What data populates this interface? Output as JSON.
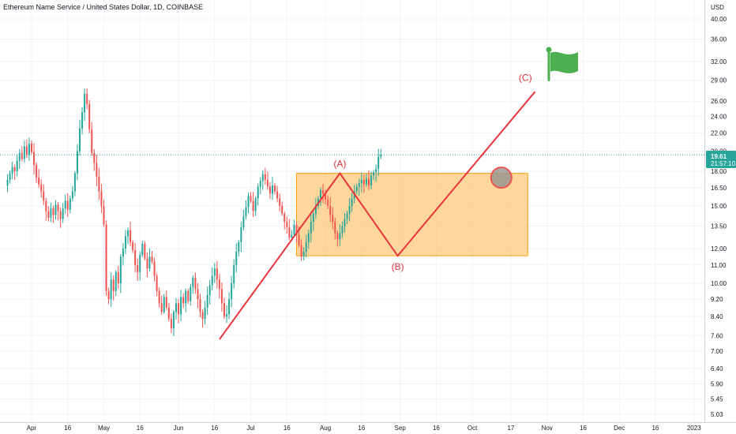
{
  "header": {
    "title": "Ethereum Name Service / United States Dollar, 1D, COINBASE"
  },
  "price_axis": {
    "currency": "USD",
    "last_price": "19.61",
    "countdown": "21:57:10",
    "badge_color": "#26a69a"
  },
  "colors": {
    "up": "#26a69a",
    "down": "#ef5350",
    "wave_line": "#e8343a",
    "zone_fill": "#ffb74d",
    "flag": "#4caf50",
    "grid": "#f0f3fa"
  },
  "annotations": {
    "wave_a": "(A)",
    "wave_b": "(B)",
    "wave_c": "(C)",
    "flag_icon": "flag-icon",
    "circle_icon": "circle-marker-icon"
  },
  "chart_data": {
    "type": "candlestick",
    "title": "Ethereum Name Service / United States Dollar, 1D, COINBASE",
    "scale": "log",
    "ylim": [
      5.03,
      44.0
    ],
    "y_ticks": [
      5.03,
      5.45,
      5.9,
      6.4,
      7.0,
      7.6,
      8.4,
      9.2,
      10.0,
      11.0,
      12.0,
      13.5,
      15.0,
      16.5,
      18.0,
      20.0,
      22.0,
      24.0,
      26.0,
      29.0,
      32.0,
      36.0,
      40.0
    ],
    "y_tick_labels": [
      "5.03",
      "5.45",
      "5.90",
      "6.40",
      "7.00",
      "7.60",
      "8.40",
      "9.20",
      "10.00",
      "11.00",
      "12.00",
      "13.50",
      "15.00",
      "16.50",
      "18.00",
      "20.00",
      "22.00",
      "24.00",
      "26.00",
      "29.00",
      "32.00",
      "36.00",
      "40.00"
    ],
    "x_ticks": [
      "Apr",
      "16",
      "May",
      "16",
      "Jun",
      "16",
      "Jul",
      "16",
      "Aug",
      "16",
      "Sep",
      "16",
      "Oct",
      "17",
      "Nov",
      "16",
      "Dec",
      "16",
      "2023"
    ],
    "x_tick_days": [
      0,
      15,
      30,
      45,
      61,
      76,
      91,
      106,
      122,
      137,
      153,
      168,
      183,
      199,
      214,
      229,
      244,
      259,
      275
    ],
    "candle_start_day": -10,
    "closes": [
      17.2,
      17.8,
      18.4,
      18.0,
      19.0,
      19.8,
      19.2,
      20.5,
      19.6,
      20.8,
      19.9,
      18.6,
      17.4,
      16.8,
      16.2,
      15.4,
      14.6,
      14.1,
      14.8,
      14.3,
      15.1,
      14.6,
      14.0,
      14.8,
      15.4,
      14.7,
      15.6,
      16.2,
      17.8,
      20.0,
      22.5,
      24.5,
      27.0,
      25.6,
      22.4,
      19.8,
      18.8,
      17.5,
      16.2,
      15.0,
      13.6,
      9.6,
      9.2,
      10.2,
      9.6,
      10.6,
      10.0,
      11.5,
      12.0,
      12.8,
      13.2,
      12.4,
      11.9,
      11.0,
      10.6,
      11.6,
      12.3,
      11.4,
      10.8,
      11.5,
      11.2,
      10.4,
      9.6,
      9.0,
      8.6,
      9.3,
      8.8,
      8.3,
      7.9,
      8.6,
      9.0,
      8.5,
      9.3,
      9.0,
      9.6,
      9.1,
      9.8,
      10.3,
      9.7,
      9.2,
      8.6,
      8.3,
      8.8,
      9.4,
      9.9,
      10.4,
      10.8,
      10.2,
      9.7,
      9.0,
      8.4,
      8.5,
      9.2,
      10.0,
      11.0,
      11.8,
      12.4,
      13.4,
      14.2,
      14.9,
      15.8,
      15.4,
      14.6,
      15.6,
      16.6,
      17.1,
      17.7,
      17.2,
      16.6,
      16.0,
      16.7,
      16.2,
      15.6,
      15.0,
      14.4,
      13.8,
      13.4,
      12.7,
      12.9,
      13.6,
      12.9,
      12.2,
      11.5,
      11.8,
      12.4,
      13.0,
      13.8,
      14.4,
      15.0,
      15.6,
      16.3,
      16.0,
      15.5,
      15.0,
      14.3,
      13.8,
      13.0,
      12.6,
      13.0,
      13.5,
      14.0,
      14.4,
      15.0,
      15.6,
      16.2,
      16.6,
      16.9,
      17.2,
      16.8,
      17.3,
      16.7,
      17.6,
      17.9,
      18.2,
      19.4,
      19.61
    ]
  }
}
